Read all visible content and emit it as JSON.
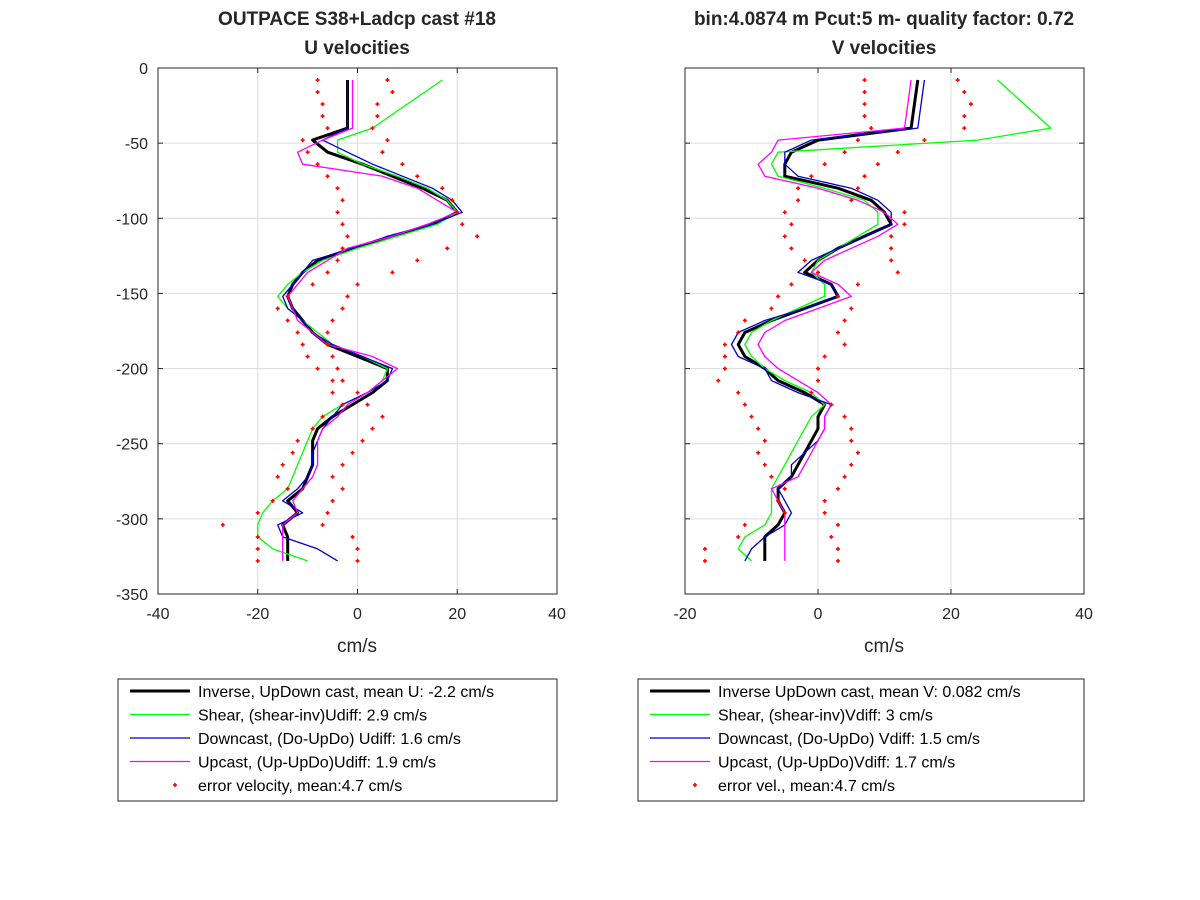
{
  "colors": {
    "inverse": "#000000",
    "shear": "#00ff00",
    "downcast": "#0000cc",
    "upcast": "#ff00ff",
    "error": "#ff0000"
  },
  "chart_data": [
    {
      "type": "line",
      "title": "OUTPACE S38+Ladcp cast #18",
      "subtitle": "U velocities",
      "xlabel": "cm/s",
      "ylabel": "",
      "xlim": [
        -40,
        40
      ],
      "ylim": [
        -350,
        0
      ],
      "xticks": [
        "-40",
        "-20",
        "0",
        "20",
        "40"
      ],
      "yticks": [
        "0",
        "-50",
        "-100",
        "-150",
        "-200",
        "-250",
        "-300",
        "-350"
      ],
      "grid": true,
      "legend_position": "below",
      "y": [
        -8,
        -40,
        -48,
        -56,
        -64,
        -72,
        -80,
        -88,
        -96,
        -104,
        -112,
        -120,
        -128,
        -136,
        -144,
        -152,
        -160,
        -168,
        -176,
        -184,
        -192,
        -200,
        -208,
        -216,
        -224,
        -232,
        -240,
        -248,
        -256,
        -264,
        -272,
        -280,
        -288,
        -296,
        -304,
        -312,
        -320,
        -328
      ],
      "error_y": [
        -8,
        -16,
        -24,
        -32,
        -40,
        -48,
        -56,
        -64,
        -72,
        -80,
        -88,
        -96,
        -104,
        -112,
        -120,
        -128,
        -136,
        -144,
        -152,
        -160,
        -168,
        -176,
        -184,
        -192,
        -200,
        -208,
        -216,
        -224,
        -232,
        -240,
        -248,
        -256,
        -264,
        -272,
        -280,
        -288,
        -296,
        -304,
        -312,
        -320,
        -328
      ],
      "series": [
        {
          "name": "Inverse, UpDown cast, mean U:  -2.2 cm/s",
          "style": "inverse",
          "x": [
            -2,
            -2,
            -9,
            -6,
            1,
            7,
            13,
            18,
            20,
            15,
            7,
            -1,
            -8,
            -11,
            -13,
            -14,
            -13,
            -11,
            -9,
            -6,
            0,
            6,
            6,
            3,
            -1,
            -5,
            -8,
            -9,
            -9,
            -9,
            -10,
            -11,
            -14,
            -12,
            -15,
            -14,
            -14,
            -14
          ]
        },
        {
          "name": "Shear, (shear-inv)Udiff:  2.9 cm/s",
          "style": "shear",
          "x": [
            17,
            3,
            -4,
            -4,
            1,
            8,
            14,
            18,
            20,
            16,
            8,
            0,
            -7,
            -11,
            -14,
            -16,
            -14,
            -11,
            -8,
            -5,
            1,
            6,
            5,
            2,
            -3,
            -7,
            -9,
            -10,
            -11,
            -12,
            -13,
            -14,
            -17,
            -19,
            -20,
            -20,
            -17,
            -10
          ]
        },
        {
          "name": "Downcast, (Do-UpDo) Udiff:  1.6 cm/s",
          "style": "downcast",
          "x": [
            -2,
            -2,
            -7,
            -2,
            3,
            9,
            15,
            19,
            21,
            15,
            6,
            -1,
            -9,
            -11,
            -13,
            -15,
            -14,
            -11,
            -9,
            -5,
            1,
            7,
            6,
            2,
            -3,
            -5,
            -7,
            -8,
            -9,
            -9,
            -10,
            -12,
            -15,
            -11,
            -16,
            -15,
            -8,
            -4
          ]
        },
        {
          "name": "Upcast, (Up-UpDo)Udiff:  1.9 cm/s",
          "style": "upcast",
          "x": [
            -1,
            -1,
            -7,
            -12,
            -11,
            5,
            12,
            16,
            20,
            14,
            7,
            -2,
            -6,
            -10,
            -12,
            -14,
            -13,
            -12,
            -9,
            -6,
            3,
            8,
            5,
            2,
            -2,
            -4,
            -7,
            -8,
            -8,
            -8,
            -9,
            -11,
            -13,
            -12,
            -15,
            -15,
            -15,
            -15
          ]
        },
        {
          "name": "error velocity, mean:4.7 cm/s",
          "style": "error",
          "x_left": [
            -8,
            -8,
            -7,
            -7,
            -6,
            -11,
            -10,
            -8,
            -6,
            -4,
            -3,
            -4,
            -3,
            -2,
            -3,
            -4,
            -6,
            -9,
            -14,
            -16,
            -14,
            -12,
            -11,
            -10,
            -8,
            -5,
            -5,
            -3,
            -7,
            -9,
            -12,
            -13,
            -15,
            -16,
            -14,
            -17,
            -20,
            -27,
            -20,
            -20,
            -20
          ],
          "x_right": [
            6,
            7,
            4,
            4,
            3,
            6,
            5,
            9,
            12,
            17,
            19,
            20,
            21,
            24,
            18,
            12,
            7,
            0,
            -2,
            -3,
            -5,
            -6,
            -6,
            -5,
            -4,
            -3,
            0,
            2,
            5,
            3,
            1,
            -1,
            -3,
            -5,
            -3,
            -5,
            -6,
            -7,
            -1,
            0,
            0
          ]
        }
      ]
    },
    {
      "type": "line",
      "title": "bin:4.0874 m  Pcut:5 m- quality factor:  0.72",
      "subtitle": "V velocities",
      "xlabel": "cm/s",
      "ylabel": "",
      "xlim": [
        -20,
        40
      ],
      "ylim": [
        -350,
        0
      ],
      "xticks": [
        "-20",
        "0",
        "20",
        "40"
      ],
      "yticks": [],
      "grid": true,
      "legend_position": "below",
      "y": [
        -8,
        -40,
        -48,
        -56,
        -64,
        -72,
        -80,
        -88,
        -96,
        -104,
        -112,
        -120,
        -128,
        -136,
        -144,
        -152,
        -160,
        -168,
        -176,
        -184,
        -192,
        -200,
        -208,
        -216,
        -224,
        -232,
        -240,
        -248,
        -256,
        -264,
        -272,
        -280,
        -288,
        -296,
        -304,
        -312,
        -320,
        -328
      ],
      "error_y": [
        -8,
        -16,
        -24,
        -32,
        -40,
        -48,
        -56,
        -64,
        -72,
        -80,
        -88,
        -96,
        -104,
        -112,
        -120,
        -128,
        -136,
        -144,
        -152,
        -160,
        -168,
        -176,
        -184,
        -192,
        -200,
        -208,
        -216,
        -224,
        -232,
        -240,
        -248,
        -256,
        -264,
        -272,
        -280,
        -288,
        -296,
        -304,
        -312,
        -320,
        -328
      ],
      "series": [
        {
          "name": "Inverse UpDown cast, mean V:  0.082 cm/s",
          "style": "inverse",
          "x": [
            15,
            14,
            0,
            -4,
            -5,
            -5,
            3,
            8,
            10,
            11,
            7,
            3,
            0,
            -2,
            2,
            3,
            -2,
            -7,
            -11,
            -12,
            -11,
            -8,
            -6,
            -2,
            1,
            0,
            0,
            -1,
            -2,
            -3,
            -4,
            -6,
            -6,
            -5,
            -6,
            -8,
            -8,
            -8
          ]
        },
        {
          "name": "Shear, (shear-inv)Vdiff:  3 cm/s",
          "style": "shear",
          "x": [
            27,
            35,
            24,
            -6,
            -7,
            -6,
            1,
            7,
            9,
            9,
            6,
            3,
            0,
            -1,
            1,
            1,
            -3,
            -7,
            -10,
            -11,
            -10,
            -8,
            -5,
            -1,
            1,
            -1,
            -2,
            -3,
            -4,
            -5,
            -6,
            -7,
            -7,
            -7,
            -8,
            -11,
            -12,
            -10
          ]
        },
        {
          "name": "Downcast, (Do-UpDo) Vdiff:  1.5 cm/s",
          "style": "downcast",
          "x": [
            16,
            15,
            -1,
            -5,
            -5,
            -3,
            5,
            9,
            11,
            11,
            7,
            3,
            -1,
            -3,
            2,
            3,
            -2,
            -8,
            -12,
            -13,
            -12,
            -8,
            -7,
            -3,
            2,
            1,
            1,
            0,
            -2,
            -4,
            -4,
            -6,
            -5,
            -4,
            -5,
            -8,
            -10,
            -11
          ]
        },
        {
          "name": "Upcast, (Up-UpDo)Vdiff:  1.7 cm/s",
          "style": "upcast",
          "x": [
            14,
            13,
            -6,
            -7,
            -9,
            -8,
            0,
            6,
            10,
            12,
            9,
            5,
            1,
            -1,
            3,
            5,
            0,
            -5,
            -8,
            -9,
            -8,
            -6,
            -3,
            0,
            2,
            1,
            1,
            0,
            -1,
            -2,
            -3,
            -7,
            -6,
            -5,
            -5,
            -5,
            -5,
            -5
          ]
        },
        {
          "name": "error vel., mean:4.7 cm/s",
          "style": "error",
          "x_left": [
            7,
            7,
            7,
            7,
            8,
            6,
            4,
            1,
            -1,
            -3,
            -3,
            -5,
            -4,
            -5,
            -4,
            -2,
            0,
            -4,
            -6,
            -7,
            -11,
            -12,
            -14,
            -14,
            -14,
            -15,
            -12,
            -11,
            -10,
            -9,
            -8,
            -9,
            -8,
            -7,
            -5,
            -6,
            -5,
            -11,
            -12,
            -17,
            -17
          ],
          "x_right": [
            21,
            22,
            23,
            22,
            22,
            16,
            12,
            9,
            7,
            6,
            5,
            13,
            13,
            11,
            11,
            11,
            12,
            6,
            3,
            5,
            4,
            3,
            4,
            1,
            0,
            0,
            -1,
            2,
            4,
            5,
            5,
            6,
            5,
            4,
            3,
            1,
            1,
            3,
            2,
            3,
            3
          ]
        }
      ]
    }
  ]
}
